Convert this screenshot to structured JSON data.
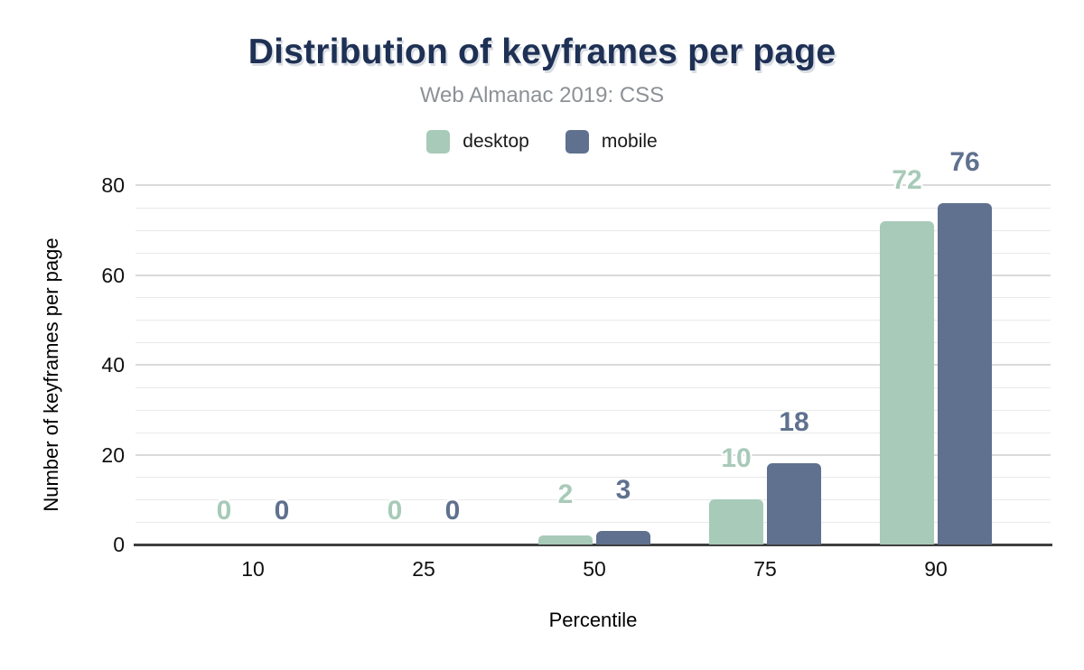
{
  "chart_data": {
    "type": "bar",
    "title": "Distribution of keyframes per page",
    "subtitle": "Web Almanac 2019: CSS",
    "xlabel": "Percentile",
    "ylabel": "Number of keyframes per page",
    "categories": [
      "10",
      "25",
      "50",
      "75",
      "90"
    ],
    "series": [
      {
        "name": "desktop",
        "color": "#a8cab9",
        "values": [
          0,
          0,
          2,
          10,
          72
        ]
      },
      {
        "name": "mobile",
        "color": "#5f718e",
        "values": [
          0,
          0,
          3,
          18,
          76
        ]
      }
    ],
    "ylim": [
      0,
      80
    ],
    "yticks": [
      0,
      20,
      40,
      60,
      80
    ],
    "minor_grid_step": 5,
    "grid": "on",
    "legend_position": "top",
    "colors": {
      "title": "#1e3054",
      "subtitle": "#8d9196",
      "axis_line": "#3f3f3f",
      "minor_grid": "#e9e9e9",
      "major_grid": "#dadada",
      "background": "#ffffff"
    }
  }
}
